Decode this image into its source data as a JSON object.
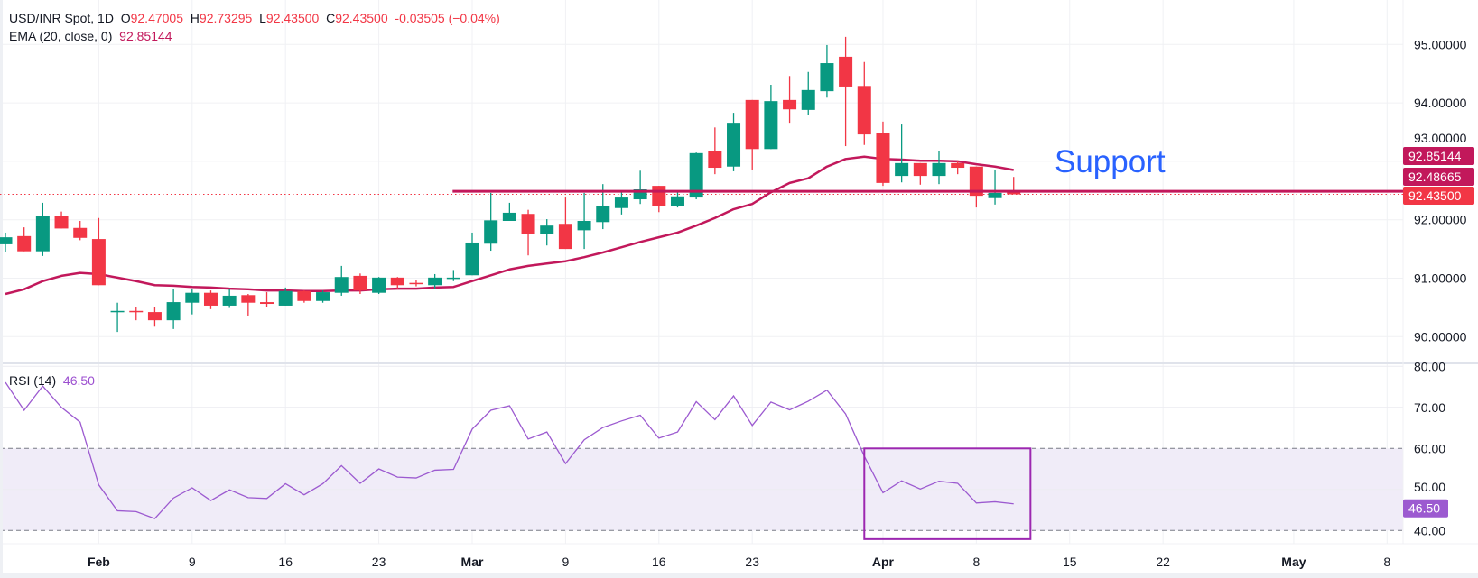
{
  "header": {
    "symbol": "USD/INR Spot, 1D",
    "o_label": "O",
    "o_value": "92.47005",
    "h_label": "H",
    "h_value": "92.73295",
    "l_label": "L",
    "l_value": "92.43500",
    "c_label": "C",
    "c_value": "92.43500",
    "change": "-0.03505 (−0.04%)",
    "ema_label": "EMA (20, close, 0)",
    "ema_value": "92.85144",
    "rsi_label": "RSI (14)",
    "rsi_value": "46.50"
  },
  "annotation": {
    "text": "Support"
  },
  "colors": {
    "up": "#089981",
    "down": "#f23645",
    "ema": "#c2185b",
    "rsi": "#9c5ad0",
    "support_text": "#2962ff",
    "rsi_box": "#9c27b0",
    "rsi_band": "#f0ecf8"
  },
  "chart_data": [
    {
      "type": "candlestick",
      "title": "USD/INR Spot, 1D",
      "price_axis_ticks": [
        "95.00000",
        "94.00000",
        "93.00000",
        "92.00000",
        "91.00000",
        "90.00000"
      ],
      "price_axis_values": [
        95,
        94,
        93,
        92,
        91,
        90
      ],
      "ylim": [
        89.8,
        95.75
      ],
      "x_ticks": [
        {
          "label": "Feb",
          "index": 5
        },
        {
          "label": "9",
          "index": 10
        },
        {
          "label": "16",
          "index": 15
        },
        {
          "label": "23",
          "index": 20
        },
        {
          "label": "Mar",
          "index": 25
        },
        {
          "label": "9",
          "index": 30
        },
        {
          "label": "16",
          "index": 35
        },
        {
          "label": "23",
          "index": 40
        },
        {
          "label": "Apr",
          "index": 47
        },
        {
          "label": "8",
          "index": 52
        },
        {
          "label": "15",
          "index": 57
        },
        {
          "label": "22",
          "index": 62
        },
        {
          "label": "May",
          "index": 69
        },
        {
          "label": "8",
          "index": 74
        }
      ],
      "candles": [
        {
          "o": 91.58,
          "h": 91.78,
          "l": 91.44,
          "c": 91.7
        },
        {
          "o": 91.72,
          "h": 91.87,
          "l": 91.46,
          "c": 91.46
        },
        {
          "o": 91.46,
          "h": 92.29,
          "l": 91.38,
          "c": 92.06
        },
        {
          "o": 92.06,
          "h": 92.14,
          "l": 91.85,
          "c": 91.85
        },
        {
          "o": 91.86,
          "h": 91.98,
          "l": 91.65,
          "c": 91.69
        },
        {
          "o": 91.67,
          "h": 92.03,
          "l": 90.88,
          "c": 90.88
        },
        {
          "o": 90.43,
          "h": 90.58,
          "l": 90.08,
          "c": 90.44
        },
        {
          "o": 90.44,
          "h": 90.51,
          "l": 90.28,
          "c": 90.42
        },
        {
          "o": 90.42,
          "h": 90.51,
          "l": 90.17,
          "c": 90.28
        },
        {
          "o": 90.28,
          "h": 90.81,
          "l": 90.13,
          "c": 90.59
        },
        {
          "o": 90.58,
          "h": 90.81,
          "l": 90.38,
          "c": 90.75
        },
        {
          "o": 90.75,
          "h": 90.79,
          "l": 90.47,
          "c": 90.53
        },
        {
          "o": 90.53,
          "h": 90.82,
          "l": 90.49,
          "c": 90.7
        },
        {
          "o": 90.71,
          "h": 90.73,
          "l": 90.36,
          "c": 90.58
        },
        {
          "o": 90.59,
          "h": 90.76,
          "l": 90.51,
          "c": 90.56
        },
        {
          "o": 90.53,
          "h": 90.84,
          "l": 90.53,
          "c": 90.78
        },
        {
          "o": 90.78,
          "h": 90.79,
          "l": 90.58,
          "c": 90.61
        },
        {
          "o": 90.61,
          "h": 90.79,
          "l": 90.58,
          "c": 90.76
        },
        {
          "o": 90.75,
          "h": 91.21,
          "l": 90.7,
          "c": 91.02
        },
        {
          "o": 91.04,
          "h": 91.08,
          "l": 90.73,
          "c": 90.79
        },
        {
          "o": 90.75,
          "h": 91.02,
          "l": 90.73,
          "c": 91.01
        },
        {
          "o": 91.01,
          "h": 91.02,
          "l": 90.82,
          "c": 90.88
        },
        {
          "o": 90.92,
          "h": 90.97,
          "l": 90.86,
          "c": 90.9
        },
        {
          "o": 90.88,
          "h": 91.07,
          "l": 90.82,
          "c": 91.01
        },
        {
          "o": 91.0,
          "h": 91.14,
          "l": 90.95,
          "c": 91.01
        },
        {
          "o": 91.05,
          "h": 91.78,
          "l": 91.05,
          "c": 91.61
        },
        {
          "o": 91.59,
          "h": 92.46,
          "l": 91.47,
          "c": 91.99
        },
        {
          "o": 91.98,
          "h": 92.29,
          "l": 91.98,
          "c": 92.12
        },
        {
          "o": 92.1,
          "h": 92.17,
          "l": 91.39,
          "c": 91.75
        },
        {
          "o": 91.75,
          "h": 92.01,
          "l": 91.56,
          "c": 91.9
        },
        {
          "o": 91.93,
          "h": 92.38,
          "l": 91.5,
          "c": 91.5
        },
        {
          "o": 91.82,
          "h": 92.46,
          "l": 91.5,
          "c": 91.98
        },
        {
          "o": 91.96,
          "h": 92.61,
          "l": 91.84,
          "c": 92.23
        },
        {
          "o": 92.2,
          "h": 92.49,
          "l": 92.09,
          "c": 92.38
        },
        {
          "o": 92.35,
          "h": 92.84,
          "l": 92.27,
          "c": 92.52
        },
        {
          "o": 92.58,
          "h": 92.58,
          "l": 92.13,
          "c": 92.24
        },
        {
          "o": 92.24,
          "h": 92.47,
          "l": 92.21,
          "c": 92.4
        },
        {
          "o": 92.38,
          "h": 93.15,
          "l": 92.35,
          "c": 93.14
        },
        {
          "o": 93.17,
          "h": 93.58,
          "l": 92.78,
          "c": 92.89
        },
        {
          "o": 92.91,
          "h": 93.83,
          "l": 92.83,
          "c": 93.66
        },
        {
          "o": 94.05,
          "h": 94.05,
          "l": 92.86,
          "c": 93.21
        },
        {
          "o": 93.21,
          "h": 94.31,
          "l": 93.21,
          "c": 94.03
        },
        {
          "o": 94.05,
          "h": 94.46,
          "l": 93.66,
          "c": 93.89
        },
        {
          "o": 93.88,
          "h": 94.53,
          "l": 93.8,
          "c": 94.22
        },
        {
          "o": 94.2,
          "h": 94.99,
          "l": 94.09,
          "c": 94.68
        },
        {
          "o": 94.79,
          "h": 95.13,
          "l": 93.26,
          "c": 94.28
        },
        {
          "o": 94.29,
          "h": 94.7,
          "l": 93.28,
          "c": 93.46
        },
        {
          "o": 93.48,
          "h": 93.68,
          "l": 92.58,
          "c": 92.63
        },
        {
          "o": 92.75,
          "h": 93.63,
          "l": 92.64,
          "c": 92.97
        },
        {
          "o": 92.97,
          "h": 92.97,
          "l": 92.6,
          "c": 92.75
        },
        {
          "o": 92.75,
          "h": 93.18,
          "l": 92.61,
          "c": 92.97
        },
        {
          "o": 92.97,
          "h": 93.0,
          "l": 92.78,
          "c": 92.89
        },
        {
          "o": 92.91,
          "h": 92.91,
          "l": 92.21,
          "c": 92.41
        },
        {
          "o": 92.37,
          "h": 92.86,
          "l": 92.26,
          "c": 92.46
        },
        {
          "o": 92.47005,
          "h": 92.73295,
          "l": 92.435,
          "c": 92.435
        }
      ],
      "ema": [
        90.73,
        90.81,
        90.95,
        91.04,
        91.09,
        91.07,
        91.01,
        90.95,
        90.88,
        90.87,
        90.85,
        90.84,
        90.82,
        90.81,
        90.79,
        90.79,
        90.78,
        90.78,
        90.79,
        90.79,
        90.81,
        90.82,
        90.82,
        90.84,
        90.85,
        90.95,
        91.05,
        91.15,
        91.21,
        91.25,
        91.29,
        91.36,
        91.44,
        91.53,
        91.62,
        91.7,
        91.78,
        91.9,
        92.03,
        92.18,
        92.27,
        92.47,
        92.63,
        92.71,
        92.91,
        93.04,
        93.08,
        93.04,
        93.03,
        93.01,
        93.01,
        93.0,
        92.95,
        92.91,
        92.85144
      ],
      "support_level": {
        "value": 92.48665,
        "start_index": 24,
        "label": "92.48665"
      },
      "last_price": {
        "value": 92.435,
        "label": "92.43500"
      },
      "ema_last": {
        "value": 92.85144,
        "label": "92.85144"
      }
    },
    {
      "type": "line",
      "title": "RSI (14)",
      "ylim": [
        37,
        81
      ],
      "axis_ticks": [
        "80.00",
        "70.00",
        "60.00",
        "50.00",
        "40.00"
      ],
      "axis_values": [
        80,
        70,
        60,
        50,
        40
      ],
      "band": [
        40,
        60
      ],
      "values": [
        76.1,
        69.3,
        75.2,
        70.0,
        66.4,
        51.1,
        44.8,
        44.6,
        42.9,
        47.9,
        50.4,
        47.3,
        49.9,
        48.0,
        47.8,
        51.4,
        48.7,
        51.4,
        55.8,
        51.5,
        55.0,
        53.0,
        52.8,
        54.7,
        54.9,
        64.7,
        69.3,
        70.4,
        62.3,
        64.0,
        56.3,
        62.1,
        65.1,
        66.7,
        68.1,
        62.5,
        64.0,
        71.4,
        67.0,
        72.8,
        65.6,
        71.3,
        69.4,
        71.5,
        74.2,
        68.4,
        58.1,
        49.2,
        52.1,
        50.1,
        52.0,
        51.5,
        46.7,
        47.0,
        46.5
      ],
      "last": {
        "value": 46.5,
        "label": "46.50"
      },
      "highlight_box": {
        "start_index": 46.0,
        "end_index": 54.9,
        "from": 37.9,
        "to": 60
      }
    }
  ]
}
